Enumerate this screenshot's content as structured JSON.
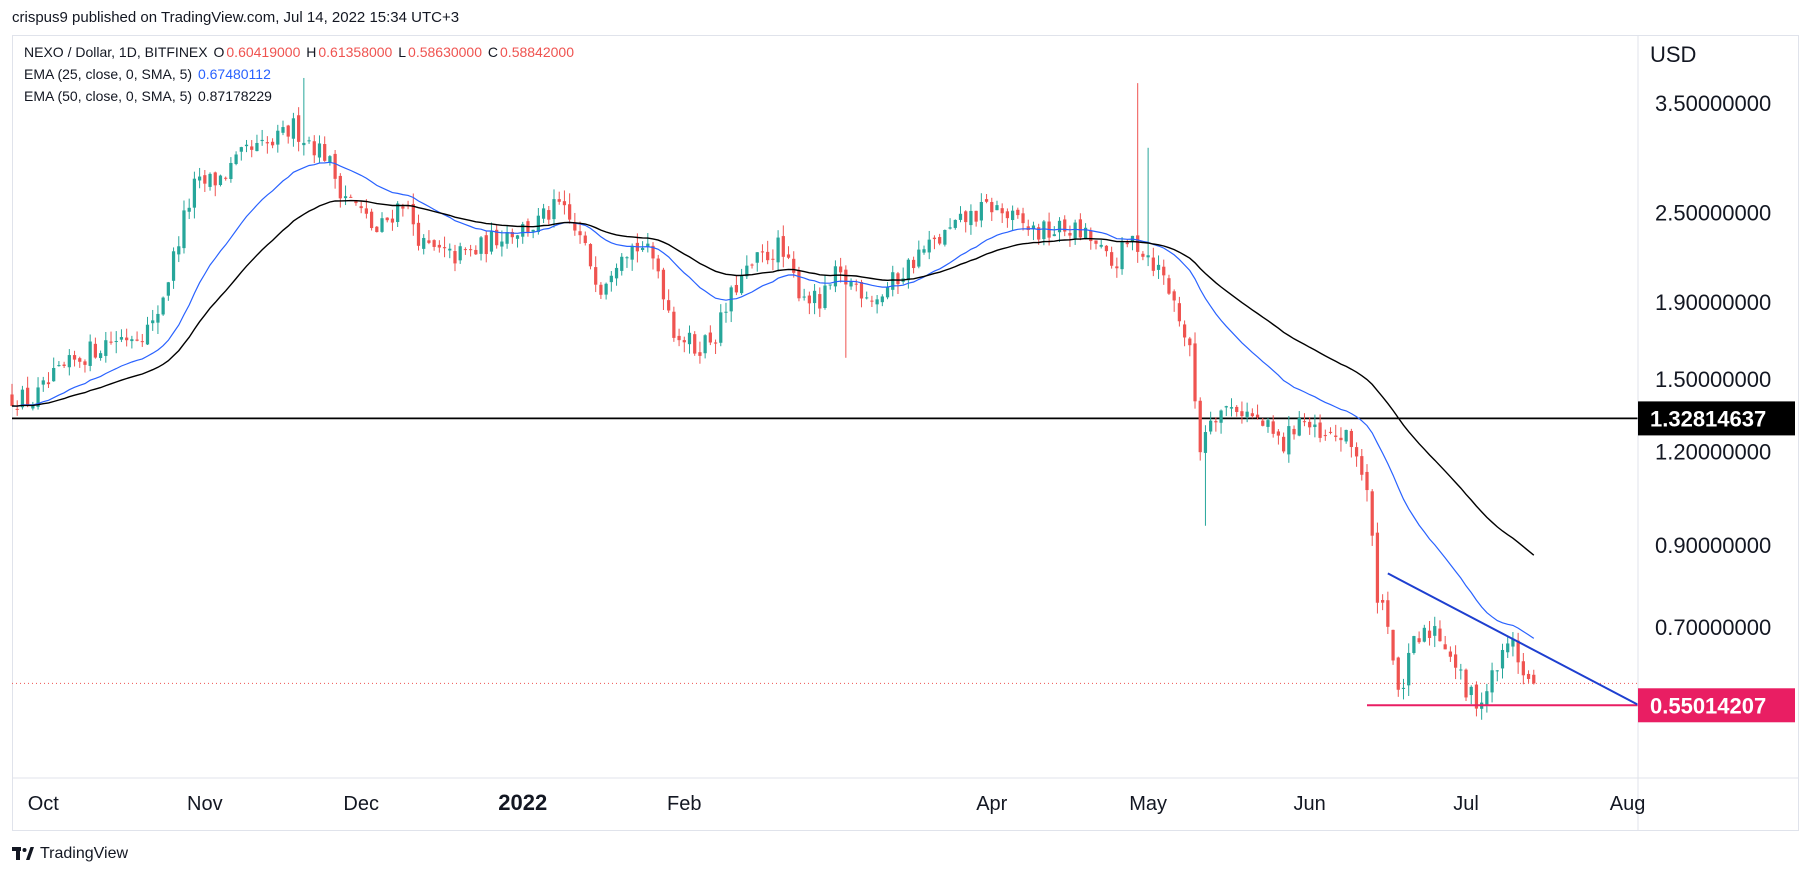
{
  "publisher_line": "crispus9 published on TradingView.com, Jul 14, 2022 15:34 UTC+3",
  "legend": {
    "symbol": "NEXO / Dollar, 1D, BITFINEX",
    "open_label": "O",
    "open": "0.60419000",
    "high_label": "H",
    "high": "0.61358000",
    "low_label": "L",
    "low": "0.58630000",
    "close_label": "C",
    "close": "0.58842000",
    "ema25_label": "EMA (25, close, 0, SMA, 5)",
    "ema25_value": "0.67480112",
    "ema50_label": "EMA (50, close, 0, SMA, 5)",
    "ema50_value": "0.87178229"
  },
  "currency": "USD",
  "footer_brand": "TradingView",
  "colors": {
    "up": "#26a69a",
    "down": "#ef5350",
    "ema25": "#2962ff",
    "ema50": "#000000",
    "support_line": "#e91e63",
    "trend_line": "#1e3fd0",
    "horizontal_level": "#000000"
  },
  "chart_data": {
    "type": "candlestick",
    "scale": "log",
    "title": "",
    "x_axis_labels": [
      {
        "label": "Oct",
        "date": "2021-10-01"
      },
      {
        "label": "Nov",
        "date": "2021-11-01"
      },
      {
        "label": "Dec",
        "date": "2021-12-01"
      },
      {
        "label": "2022",
        "date": "2022-01-01"
      },
      {
        "label": "Feb",
        "date": "2022-02-01"
      },
      {
        "label": "Apr",
        "date": "2022-04-01"
      },
      {
        "label": "May",
        "date": "2022-05-01"
      },
      {
        "label": "Jun",
        "date": "2022-06-01"
      },
      {
        "label": "Jul",
        "date": "2022-07-01"
      },
      {
        "label": "Aug",
        "date": "2022-08-01"
      }
    ],
    "y_axis_labels": [
      "3.50000000",
      "2.50000000",
      "1.90000000",
      "1.50000000",
      "1.20000000",
      "0.90000000",
      "0.70000000"
    ],
    "y_ticks": [
      3.5,
      2.5,
      1.9,
      1.5,
      1.2,
      0.9,
      0.7
    ],
    "y_range": [
      0.44,
      4.3
    ],
    "x_range": [
      "2021-09-25",
      "2022-08-03"
    ],
    "price_labels": [
      {
        "text": "1.32814637",
        "value": 1.32814637,
        "bg": "#000000",
        "fg": "#ffffff"
      },
      {
        "text": "0.55014207",
        "value": 0.55014207,
        "bg": "#e91e63",
        "fg": "#ffffff"
      }
    ],
    "last_close": 0.58842,
    "horizontal_level": 1.32814637,
    "support_line": {
      "value": 0.55014207,
      "from": "2022-06-12",
      "to": "2022-08-03"
    },
    "trend_line": {
      "from": {
        "date": "2022-06-16",
        "value": 0.825
      },
      "to": {
        "date": "2022-08-03",
        "value": 0.551
      }
    },
    "close_keypoints": [
      [
        "2021-09-25",
        1.42
      ],
      [
        "2021-09-29",
        1.4
      ],
      [
        "2021-10-03",
        1.5
      ],
      [
        "2021-10-08",
        1.6
      ],
      [
        "2021-10-13",
        1.68
      ],
      [
        "2021-10-18",
        1.72
      ],
      [
        "2021-10-22",
        1.76
      ],
      [
        "2021-10-25",
        2.05
      ],
      [
        "2021-10-28",
        2.45
      ],
      [
        "2021-10-30",
        2.7
      ],
      [
        "2021-11-04",
        2.78
      ],
      [
        "2021-11-09",
        3.0
      ],
      [
        "2021-11-14",
        3.08
      ],
      [
        "2021-11-18",
        3.25
      ],
      [
        "2021-11-21",
        3.12
      ],
      [
        "2021-11-24",
        3.0
      ],
      [
        "2021-11-27",
        2.7
      ],
      [
        "2021-12-01",
        2.5
      ],
      [
        "2021-12-04",
        2.35
      ],
      [
        "2021-12-09",
        2.6
      ],
      [
        "2021-12-13",
        2.25
      ],
      [
        "2021-12-18",
        2.18
      ],
      [
        "2021-12-23",
        2.22
      ],
      [
        "2021-12-28",
        2.35
      ],
      [
        "2022-01-03",
        2.4
      ],
      [
        "2022-01-08",
        2.55
      ],
      [
        "2022-01-12",
        2.3
      ],
      [
        "2022-01-16",
        2.0
      ],
      [
        "2022-01-20",
        2.25
      ],
      [
        "2022-01-24",
        2.25
      ],
      [
        "2022-01-27",
        2.1
      ],
      [
        "2022-01-30",
        1.75
      ],
      [
        "2022-02-03",
        1.65
      ],
      [
        "2022-02-07",
        1.72
      ],
      [
        "2022-02-11",
        2.0
      ],
      [
        "2022-02-15",
        2.15
      ],
      [
        "2022-02-19",
        2.25
      ],
      [
        "2022-02-23",
        1.98
      ],
      [
        "2022-02-27",
        1.88
      ],
      [
        "2022-03-02",
        2.05
      ],
      [
        "2022-03-06",
        2.0
      ],
      [
        "2022-03-10",
        1.92
      ],
      [
        "2022-03-14",
        2.05
      ],
      [
        "2022-03-18",
        2.2
      ],
      [
        "2022-03-22",
        2.3
      ],
      [
        "2022-03-27",
        2.45
      ],
      [
        "2022-04-01",
        2.55
      ],
      [
        "2022-04-06",
        2.42
      ],
      [
        "2022-04-10",
        2.35
      ],
      [
        "2022-04-16",
        2.38
      ],
      [
        "2022-04-20",
        2.3
      ],
      [
        "2022-04-24",
        2.12
      ],
      [
        "2022-04-28",
        2.3
      ],
      [
        "2022-05-01",
        2.2
      ],
      [
        "2022-05-04",
        2.05
      ],
      [
        "2022-05-07",
        1.82
      ],
      [
        "2022-05-09",
        1.62
      ],
      [
        "2022-05-11",
        1.22
      ],
      [
        "2022-05-13",
        1.35
      ],
      [
        "2022-05-18",
        1.38
      ],
      [
        "2022-05-23",
        1.3
      ],
      [
        "2022-05-27",
        1.22
      ],
      [
        "2022-05-30",
        1.34
      ],
      [
        "2022-06-03",
        1.24
      ],
      [
        "2022-06-07",
        1.26
      ],
      [
        "2022-06-10",
        1.2
      ],
      [
        "2022-06-12",
        1.05
      ],
      [
        "2022-06-14",
        0.78
      ],
      [
        "2022-06-16",
        0.72
      ],
      [
        "2022-06-18",
        0.56
      ],
      [
        "2022-06-21",
        0.66
      ],
      [
        "2022-06-25",
        0.7
      ],
      [
        "2022-06-28",
        0.65
      ],
      [
        "2022-07-01",
        0.57
      ],
      [
        "2022-07-04",
        0.56
      ],
      [
        "2022-07-07",
        0.62
      ],
      [
        "2022-07-10",
        0.68
      ],
      [
        "2022-07-12",
        0.6
      ],
      [
        "2022-07-14",
        0.58842
      ]
    ],
    "wick_spikes": [
      {
        "date": "2022-04-29",
        "value": 3.72
      },
      {
        "date": "2022-05-01",
        "value": 3.05
      },
      {
        "date": "2022-05-12",
        "value": 0.955
      },
      {
        "date": "2021-11-20",
        "value": 3.78
      },
      {
        "date": "2022-03-04",
        "value": 1.6
      }
    ],
    "series": [
      {
        "name": "EMA (25, close, 0, SMA, 5)",
        "color": "#2962ff",
        "last": 0.67480112
      },
      {
        "name": "EMA (50, close, 0, SMA, 5)",
        "color": "#000000",
        "last": 0.87178229
      }
    ]
  }
}
